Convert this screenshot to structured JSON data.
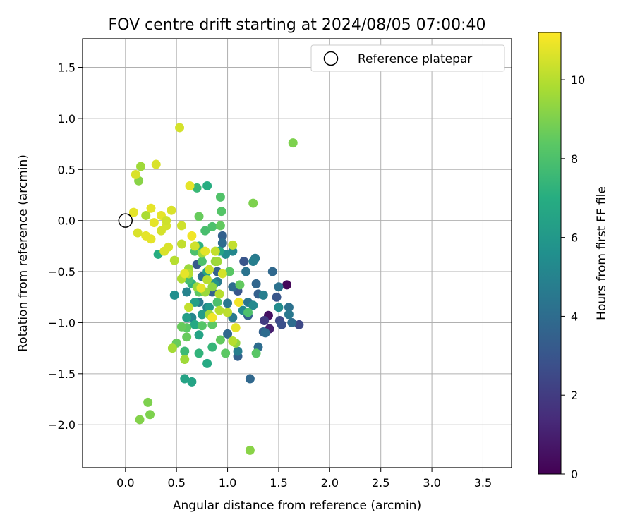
{
  "chart_data": {
    "type": "scatter",
    "title": "FOV centre drift starting at 2024/08/05 07:00:40",
    "xlabel": "Angular distance from reference (arcmin)",
    "ylabel": "Rotation from reference (arcmin)",
    "xlim": [
      -0.42,
      3.78
    ],
    "ylim": [
      -2.42,
      1.78
    ],
    "xticks": [
      0.0,
      0.5,
      1.0,
      1.5,
      2.0,
      2.5,
      3.0,
      3.5
    ],
    "xtick_labels": [
      "0.0",
      "0.5",
      "1.0",
      "1.5",
      "2.0",
      "2.5",
      "3.0",
      "3.5"
    ],
    "yticks": [
      1.5,
      1.0,
      0.5,
      0.0,
      -0.5,
      -1.0,
      -1.5,
      -2.0
    ],
    "ytick_labels": [
      "1.5",
      "1.0",
      "0.5",
      "0.0",
      "−0.5",
      "−1.0",
      "−1.5",
      "−2.0"
    ],
    "grid": true,
    "legend": {
      "position": "top-right",
      "entries": [
        {
          "label": "Reference platepar",
          "marker": "open-circle"
        }
      ]
    },
    "reference_point": {
      "x": 0.0,
      "y": 0.0
    },
    "colorbar": {
      "label": "Hours from first FF file",
      "colormap": "viridis",
      "range": [
        0,
        11.2
      ],
      "ticks": [
        0,
        2,
        4,
        6,
        8,
        10
      ],
      "tick_labels": [
        "0",
        "2",
        "4",
        "6",
        "8",
        "10"
      ]
    },
    "points": [
      [
        1.58,
        -0.63,
        0.2
      ],
      [
        1.4,
        -0.93,
        0.5
      ],
      [
        1.41,
        -1.06,
        1.0
      ],
      [
        1.36,
        -0.98,
        2.0
      ],
      [
        1.51,
        -0.98,
        2.5
      ],
      [
        1.7,
        -1.02,
        2.5
      ],
      [
        1.53,
        -1.02,
        2.8
      ],
      [
        1.48,
        -0.75,
        3.0
      ],
      [
        1.16,
        -0.4,
        3.0
      ],
      [
        1.35,
        -1.09,
        3.5
      ],
      [
        1.3,
        -0.72,
        3.5
      ],
      [
        1.1,
        -0.69,
        3.0
      ],
      [
        0.7,
        -0.43,
        3.2
      ],
      [
        0.9,
        -0.5,
        3.5
      ],
      [
        0.85,
        -0.7,
        3.5
      ],
      [
        0.95,
        -0.15,
        3.5
      ],
      [
        1.2,
        -0.93,
        3.5
      ],
      [
        1.28,
        -0.62,
        3.7
      ],
      [
        1.44,
        -0.5,
        3.8
      ],
      [
        1.22,
        -1.55,
        3.8
      ],
      [
        1.1,
        -1.33,
        3.5
      ],
      [
        1.0,
        -1.11,
        3.8
      ],
      [
        1.05,
        -0.65,
        4.0
      ],
      [
        0.95,
        -0.22,
        4.0
      ],
      [
        1.37,
        -1.1,
        4.0
      ],
      [
        1.3,
        -1.24,
        4.0
      ],
      [
        1.5,
        -0.65,
        4.2
      ],
      [
        1.6,
        -0.85,
        4.2
      ],
      [
        1.63,
        -1.0,
        4.0
      ],
      [
        1.6,
        -0.92,
        4.5
      ],
      [
        1.18,
        -0.5,
        4.3
      ],
      [
        1.27,
        -0.37,
        4.6
      ],
      [
        1.2,
        -0.8,
        4.4
      ],
      [
        1.0,
        -0.81,
        4.5
      ],
      [
        0.9,
        -0.6,
        4.6
      ],
      [
        1.05,
        -0.95,
        4.6
      ],
      [
        0.75,
        -0.55,
        4.2
      ],
      [
        0.72,
        -0.8,
        4.5
      ],
      [
        1.25,
        -0.4,
        4.8
      ],
      [
        1.35,
        -0.73,
        4.8
      ],
      [
        1.1,
        -1.28,
        4.8
      ],
      [
        0.6,
        -0.7,
        5.0
      ],
      [
        0.8,
        -0.85,
        5.0
      ],
      [
        0.65,
        -0.95,
        5.2
      ],
      [
        1.05,
        -0.3,
        5.2
      ],
      [
        1.15,
        -0.88,
        5.3
      ],
      [
        1.25,
        -0.83,
        5.3
      ],
      [
        0.98,
        -0.33,
        5.5
      ],
      [
        0.48,
        -0.73,
        5.5
      ],
      [
        1.5,
        -0.85,
        5.4
      ],
      [
        0.87,
        -0.62,
        5.8
      ],
      [
        0.82,
        -0.85,
        6.0
      ],
      [
        0.75,
        -0.92,
        6.2
      ],
      [
        0.68,
        -0.8,
        6.3
      ],
      [
        0.6,
        -0.95,
        6.3
      ],
      [
        0.58,
        -1.55,
        6.5
      ],
      [
        0.65,
        -1.58,
        6.5
      ],
      [
        0.8,
        -0.5,
        6.5
      ],
      [
        0.92,
        -0.3,
        6.6
      ],
      [
        0.72,
        -1.12,
        6.5
      ],
      [
        0.68,
        -1.02,
        6.8
      ],
      [
        0.8,
        -1.4,
        6.8
      ],
      [
        0.32,
        -0.33,
        7.0
      ],
      [
        0.7,
        0.32,
        7.5
      ],
      [
        0.8,
        0.34,
        7.0
      ],
      [
        0.72,
        -0.25,
        7.2
      ],
      [
        0.65,
        -0.62,
        7.2
      ],
      [
        0.85,
        -1.24,
        7.4
      ],
      [
        0.58,
        -1.28,
        7.6
      ],
      [
        0.72,
        -1.3,
        7.3
      ],
      [
        0.62,
        -0.58,
        7.8
      ],
      [
        0.78,
        -0.1,
        7.9
      ],
      [
        0.68,
        -0.3,
        8.0
      ],
      [
        0.93,
        0.23,
        8.1
      ],
      [
        0.94,
        0.09,
        8.2
      ],
      [
        0.85,
        -0.06,
        8.0
      ],
      [
        0.75,
        -0.4,
        8.0
      ],
      [
        0.72,
        -0.7,
        8.4
      ],
      [
        0.75,
        -1.03,
        8.2
      ],
      [
        0.85,
        -1.02,
        8.4
      ],
      [
        0.6,
        -1.05,
        8.4
      ],
      [
        0.9,
        -0.8,
        8.0
      ],
      [
        1.2,
        -0.9,
        8.0
      ],
      [
        1.28,
        -1.3,
        8.3
      ],
      [
        0.98,
        -1.3,
        8.4
      ],
      [
        0.93,
        -1.17,
        8.5
      ],
      [
        1.02,
        -0.5,
        8.3
      ],
      [
        1.12,
        -0.63,
        8.5
      ],
      [
        0.72,
        0.04,
        8.6
      ],
      [
        0.93,
        -0.05,
        8.5
      ],
      [
        0.55,
        -1.04,
        8.6
      ],
      [
        0.6,
        -1.14,
        8.6
      ],
      [
        0.5,
        -1.2,
        8.6
      ],
      [
        1.25,
        0.17,
        9.0
      ],
      [
        1.64,
        0.76,
        9.0
      ],
      [
        0.22,
        -1.78,
        9.0
      ],
      [
        0.24,
        -1.9,
        9.0
      ],
      [
        0.14,
        -1.95,
        9.1
      ],
      [
        1.22,
        -2.25,
        9.2
      ],
      [
        0.85,
        -0.65,
        9.3
      ],
      [
        0.78,
        -0.7,
        9.5
      ],
      [
        0.88,
        -0.4,
        9.4
      ],
      [
        0.62,
        -0.47,
        9.5
      ],
      [
        0.82,
        -0.92,
        9.6
      ],
      [
        1.08,
        -1.2,
        9.4
      ],
      [
        0.7,
        -0.65,
        9.5
      ],
      [
        0.75,
        -0.32,
        9.6
      ],
      [
        0.9,
        -0.4,
        9.6
      ],
      [
        0.58,
        -1.36,
        9.6
      ],
      [
        0.46,
        -1.25,
        9.7
      ],
      [
        0.13,
        0.39,
        9.2
      ],
      [
        0.15,
        0.53,
        9.6
      ],
      [
        0.2,
        0.05,
        9.8
      ],
      [
        0.55,
        -0.57,
        9.9
      ],
      [
        0.48,
        -0.39,
        10.0
      ],
      [
        0.62,
        -0.52,
        10.0
      ],
      [
        0.8,
        -0.58,
        10.0
      ],
      [
        0.92,
        -0.72,
        10.0
      ],
      [
        1.05,
        -0.24,
        10.2
      ],
      [
        1.0,
        -0.9,
        10.1
      ],
      [
        1.05,
        -1.18,
        10.0
      ],
      [
        0.62,
        -0.85,
        10.2
      ],
      [
        0.88,
        -0.3,
        10.2
      ],
      [
        0.68,
        -0.25,
        10.4
      ],
      [
        0.55,
        -0.05,
        10.4
      ],
      [
        0.53,
        0.91,
        10.5
      ],
      [
        0.1,
        0.45,
        10.6
      ],
      [
        0.3,
        0.55,
        10.6
      ],
      [
        0.08,
        0.08,
        10.8
      ],
      [
        0.2,
        -0.15,
        10.8
      ],
      [
        0.12,
        -0.12,
        10.6
      ],
      [
        0.25,
        -0.18,
        10.8
      ],
      [
        0.35,
        -0.1,
        10.5
      ],
      [
        0.42,
        -0.26,
        10.6
      ],
      [
        0.38,
        -0.3,
        10.6
      ],
      [
        0.35,
        0.05,
        10.8
      ],
      [
        0.4,
        -0.05,
        10.5
      ],
      [
        0.45,
        0.1,
        10.6
      ],
      [
        0.25,
        0.12,
        10.8
      ],
      [
        0.28,
        -0.02,
        10.8
      ],
      [
        0.63,
        0.34,
        10.8
      ],
      [
        0.65,
        -0.15,
        11.0
      ],
      [
        0.78,
        -0.3,
        10.8
      ],
      [
        0.74,
        -0.66,
        10.8
      ],
      [
        0.85,
        -0.95,
        11.0
      ],
      [
        1.11,
        -0.8,
        11.0
      ],
      [
        1.08,
        -1.05,
        10.8
      ],
      [
        0.58,
        -0.52,
        10.8
      ],
      [
        0.95,
        -0.52,
        10.5
      ],
      [
        0.4,
        0.0,
        10.4
      ],
      [
        0.55,
        -0.23,
        10.2
      ],
      [
        0.82,
        -0.48,
        10.3
      ],
      [
        0.92,
        -0.88,
        10.0
      ]
    ]
  }
}
